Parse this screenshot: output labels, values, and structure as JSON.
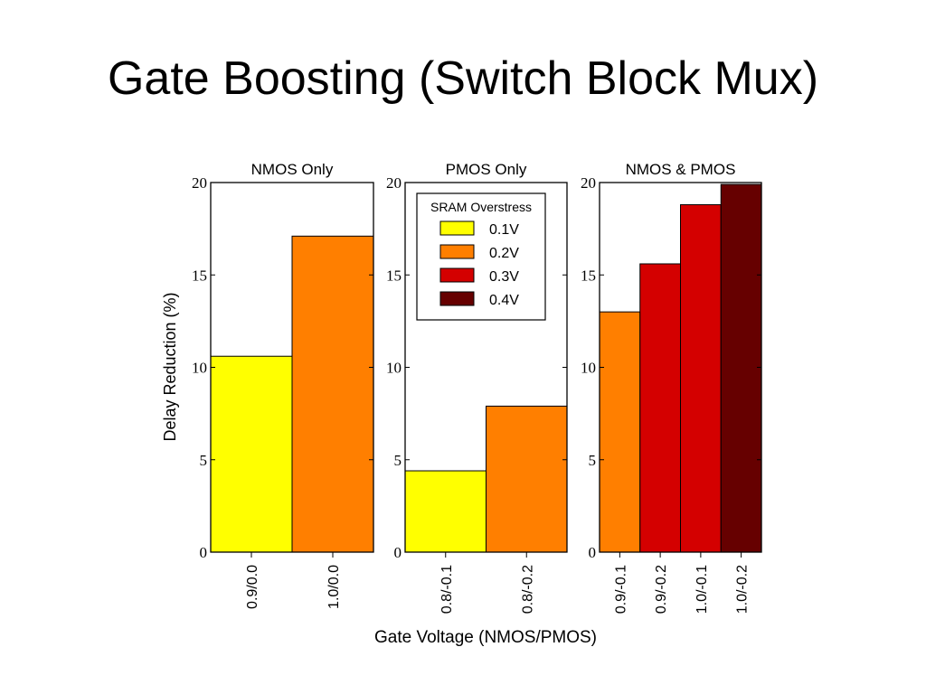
{
  "slide": {
    "title": "Gate Boosting (Switch Block Mux)"
  },
  "chart_data": {
    "type": "bar",
    "ylabel": "Delay Reduction (%)",
    "xlabel": "Gate Voltage (NMOS/PMOS)",
    "ylim": [
      0,
      20
    ],
    "yticks": [
      0,
      5,
      10,
      15,
      20
    ],
    "legend": {
      "title": "SRAM Overstress",
      "placement": "top-center",
      "entries": [
        {
          "label": "0.1V",
          "color": "#ffff00"
        },
        {
          "label": "0.2V",
          "color": "#ff7f00"
        },
        {
          "label": "0.3V",
          "color": "#d40000"
        },
        {
          "label": "0.4V",
          "color": "#660000"
        }
      ]
    },
    "panels": [
      {
        "title": "NMOS Only",
        "bars": [
          {
            "category": "0.9/0.0",
            "value": 10.6,
            "overstress": "0.1V"
          },
          {
            "category": "1.0/0.0",
            "value": 17.1,
            "overstress": "0.2V"
          }
        ]
      },
      {
        "title": "PMOS Only",
        "bars": [
          {
            "category": "0.8/-0.1",
            "value": 4.4,
            "overstress": "0.1V"
          },
          {
            "category": "0.8/-0.2",
            "value": 7.9,
            "overstress": "0.2V"
          }
        ]
      },
      {
        "title": "NMOS & PMOS",
        "bars": [
          {
            "category": "0.9/-0.1",
            "value": 13.0,
            "overstress": "0.2V"
          },
          {
            "category": "0.9/-0.2",
            "value": 15.6,
            "overstress": "0.3V"
          },
          {
            "category": "1.0/-0.1",
            "value": 18.8,
            "overstress": "0.3V"
          },
          {
            "category": "1.0/-0.2",
            "value": 19.9,
            "overstress": "0.4V"
          }
        ]
      }
    ]
  }
}
